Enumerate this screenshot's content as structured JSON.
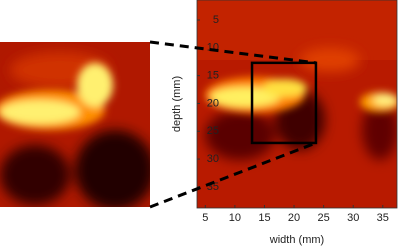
{
  "chart_data": {
    "type": "image",
    "xlabel": "width (mm)",
    "ylabel": "depth (mm)",
    "xlim": [
      3.6,
      37.4
    ],
    "ylim": [
      1.4,
      38.8
    ],
    "xticks": [
      5,
      10,
      15,
      20,
      25,
      30,
      35
    ],
    "yticks": [
      5,
      10,
      15,
      20,
      25,
      30,
      35
    ],
    "roi": {
      "x": [
        12.9,
        23.7
      ],
      "y": [
        12.7,
        27.1
      ]
    }
  }
}
